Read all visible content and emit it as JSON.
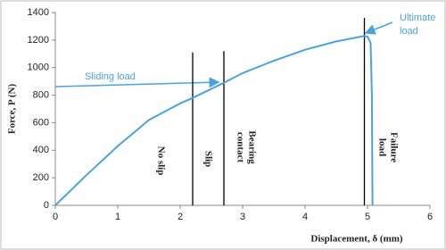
{
  "chart_data": {
    "type": "line",
    "x_label": "Displacement, δ (mm)",
    "y_label": "Force, P (N)",
    "x": [
      0,
      0.5,
      1,
      1.5,
      2,
      2.2,
      2.7,
      3,
      3.5,
      4,
      4.5,
      4.95,
      5.0,
      5.05,
      5.07,
      5.08
    ],
    "values": [
      0,
      220,
      430,
      620,
      740,
      780,
      890,
      960,
      1050,
      1130,
      1190,
      1230,
      1225,
      1180,
      800,
      0
    ],
    "color": "#4aa3df",
    "xlim": [
      0,
      6
    ],
    "xticks": [
      0,
      1,
      2,
      3,
      4,
      5,
      6
    ],
    "ylim": [
      0,
      1400
    ],
    "yticks": [
      0,
      200,
      400,
      600,
      800,
      1000,
      1200,
      1400
    ],
    "vlines": [
      {
        "x": 2.2,
        "ymax": 1110
      },
      {
        "x": 2.7,
        "ymax": 1120
      },
      {
        "x": 4.95,
        "ymax": 1360
      }
    ],
    "annotations": {
      "sliding": "Sliding load",
      "ultimate": [
        "Ultimate",
        "load"
      ],
      "no_slip": "No slip",
      "slip": "Slip",
      "bearing": [
        "Bearing",
        "contact"
      ],
      "failure": [
        "Failure",
        "load"
      ]
    }
  }
}
